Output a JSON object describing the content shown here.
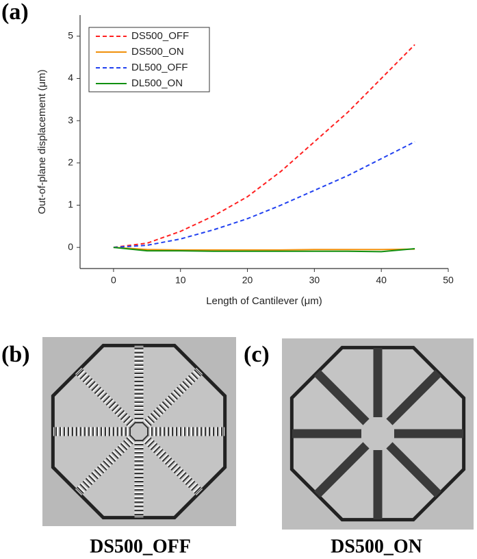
{
  "chart_data": {
    "type": "line",
    "x_label": "Length of Cantilever (μm)",
    "y_label": "Out-of-plane displacement (μm)",
    "x": [
      0,
      5,
      10,
      15,
      20,
      25,
      30,
      35,
      40,
      45
    ],
    "series": [
      {
        "name": "DS500_OFF",
        "color": "#ff2020",
        "style": "dashed",
        "values": [
          0,
          0.1,
          0.38,
          0.75,
          1.2,
          1.8,
          2.5,
          3.2,
          4.0,
          4.8
        ]
      },
      {
        "name": "DS500_ON",
        "color": "#f0900a",
        "style": "solid",
        "values": [
          0,
          -0.05,
          -0.06,
          -0.06,
          -0.06,
          -0.06,
          -0.05,
          -0.05,
          -0.05,
          -0.04
        ]
      },
      {
        "name": "DL500_OFF",
        "color": "#2040f0",
        "style": "dashed",
        "values": [
          0,
          0.05,
          0.2,
          0.42,
          0.68,
          1.0,
          1.35,
          1.7,
          2.1,
          2.5
        ]
      },
      {
        "name": "DL500_ON",
        "color": "#109010",
        "style": "solid",
        "values": [
          0,
          -0.08,
          -0.08,
          -0.09,
          -0.09,
          -0.09,
          -0.09,
          -0.09,
          -0.1,
          -0.03
        ]
      }
    ],
    "xlim": [
      -5,
      50
    ],
    "xticks": [
      0,
      10,
      20,
      30,
      40,
      50
    ],
    "ylim": [
      -0.5,
      5.5
    ],
    "yticks": [
      0,
      1,
      2,
      3,
      4,
      5
    ],
    "legend": "upper left"
  },
  "figure": {
    "labels": [
      "(a)",
      "(b)",
      "(c)"
    ],
    "captions": [
      "DS500_OFF",
      "DS500_ON"
    ]
  }
}
